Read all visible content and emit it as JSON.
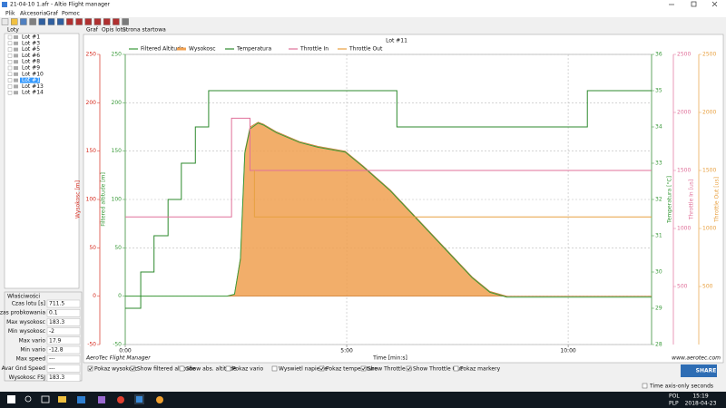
{
  "window": {
    "title": "21-04-10 1.afr - Altio Flight manager"
  },
  "menu": [
    "Plik",
    "Akcesoria",
    "Graf",
    "Pomoc"
  ],
  "left_panel": {
    "title": "Loty",
    "flights": [
      "Lot #1",
      "Lot #3",
      "Lot #5",
      "Lot #6",
      "Lot #8",
      "Lot #9",
      "Lot #10",
      "Lot #11",
      "Lot #13",
      "Lot #14"
    ],
    "selected_index": 7
  },
  "properties": {
    "title": "Właściwości",
    "rows": [
      [
        "Czas lotu [s]",
        "711.5"
      ],
      [
        "Czas probkowania",
        "0.1"
      ],
      [
        "Max wysokosc",
        "183.3"
      ],
      [
        "Min wysokosc",
        "-2"
      ],
      [
        "Max vario",
        "17.9"
      ],
      [
        "Min vario",
        "-12.8"
      ],
      [
        "Max speed",
        "---"
      ],
      [
        "Avar Gnd Speed",
        "---"
      ],
      [
        "Wysokosc FSJ",
        "183.3"
      ]
    ]
  },
  "tabs": [
    "Graf",
    "Opis lotu",
    "Strona startowa"
  ],
  "chart_data": {
    "type": "line",
    "title": "Lot #11",
    "xlabel": "Time [min:s]",
    "footer_left": "AeroTec Flight Manager",
    "footer_right": "www.aerotec.com",
    "xlim": [
      0,
      713
    ],
    "xticks": [
      {
        "value": 0,
        "label": "0:00"
      },
      {
        "value": 300,
        "label": "5:00"
      },
      {
        "value": 600,
        "label": "10:00"
      }
    ],
    "ylim": [
      -50,
      250
    ],
    "yticks": [
      -50,
      0,
      50,
      100,
      150,
      200,
      250
    ],
    "yaxes": [
      {
        "label": "Wysokosc [m]",
        "color": "#d62b1f"
      },
      {
        "label": "Filtered altitude [m]",
        "color": "#3a9a3a"
      }
    ],
    "y2lim": [
      28,
      36
    ],
    "y2ticks": [
      28,
      29,
      30,
      31,
      32,
      33,
      34,
      35,
      36
    ],
    "y2axes": [
      {
        "label": "Temperatura [°C]",
        "color": "#3a9a3a"
      }
    ],
    "y3lim": [
      0,
      2500
    ],
    "y3ticks": [
      500,
      1000,
      1500,
      2000,
      2500
    ],
    "y3axes": [
      {
        "label": "Throttle In [us]",
        "color": "#e0709a"
      },
      {
        "label": "Throttle Out [us]",
        "color": "#e8a040"
      }
    ],
    "grid": true,
    "series": [
      {
        "name": "Filtered Altitude",
        "color": "#3a9a3a",
        "axis": "y",
        "x": [
          0,
          138,
          148,
          156,
          162,
          169,
          180,
          187,
          205,
          236,
          261,
          298,
          322,
          359,
          396,
          433,
          470,
          494,
          517,
          713
        ],
        "values": [
          0,
          0,
          2,
          38,
          148,
          173,
          179,
          177,
          169,
          159,
          154,
          149,
          134,
          109,
          79,
          49,
          19,
          4,
          -1,
          -1
        ]
      },
      {
        "name": "Wysokosc",
        "color": "#f0a050",
        "axis": "y",
        "area": true,
        "x": [
          0,
          138,
          148,
          156,
          162,
          169,
          180,
          187,
          205,
          236,
          261,
          298,
          322,
          359,
          396,
          433,
          470,
          494,
          517,
          713
        ],
        "values": [
          0,
          0,
          2,
          40,
          150,
          175,
          180,
          178,
          170,
          160,
          155,
          150,
          135,
          110,
          80,
          50,
          20,
          5,
          0,
          0
        ]
      },
      {
        "name": "Temperatura",
        "color": "#2d8a2d",
        "axis": "y2",
        "x": [
          0,
          21,
          21,
          39,
          39,
          58,
          58,
          76,
          76,
          95,
          95,
          113,
          113,
          368,
          368,
          626,
          626,
          713
        ],
        "values": [
          29,
          29,
          30,
          30,
          31,
          31,
          32,
          32,
          33,
          33,
          34,
          34,
          35,
          35,
          34,
          34,
          35,
          35
        ]
      },
      {
        "name": "Throttle In",
        "color": "#e0709a",
        "axis": "y3",
        "x": [
          0,
          144,
          144,
          169,
          169,
          713
        ],
        "values": [
          1100,
          1100,
          1950,
          1950,
          1500,
          1500
        ]
      },
      {
        "name": "Throttle Out",
        "color": "#e8a040",
        "axis": "y3",
        "x": [
          175,
          175,
          713
        ],
        "values": [
          1500,
          1100,
          1100
        ]
      }
    ]
  },
  "checkboxes": [
    {
      "label": "Pokaz wysokosc",
      "checked": true
    },
    {
      "label": "Show filtered altitude",
      "checked": true
    },
    {
      "label": "Show abs. altitude",
      "checked": false
    },
    {
      "label": "Pokaz vario",
      "checked": false
    },
    {
      "label": "Wyswietl napiecie",
      "checked": false
    },
    {
      "label": "Pokaz temperature",
      "checked": true
    },
    {
      "label": "Show Throttle In",
      "checked": true
    },
    {
      "label": "Show Throttle Out",
      "checked": true
    },
    {
      "label": "Pokaz markery",
      "checked": false
    }
  ],
  "share_button": "SHARE",
  "time_axis_option": {
    "label": "Time axis-only seconds",
    "checked": false
  },
  "taskbar": {
    "language": "POL",
    "layout": "PLP",
    "time": "15:19",
    "date": "2018-04-23"
  }
}
